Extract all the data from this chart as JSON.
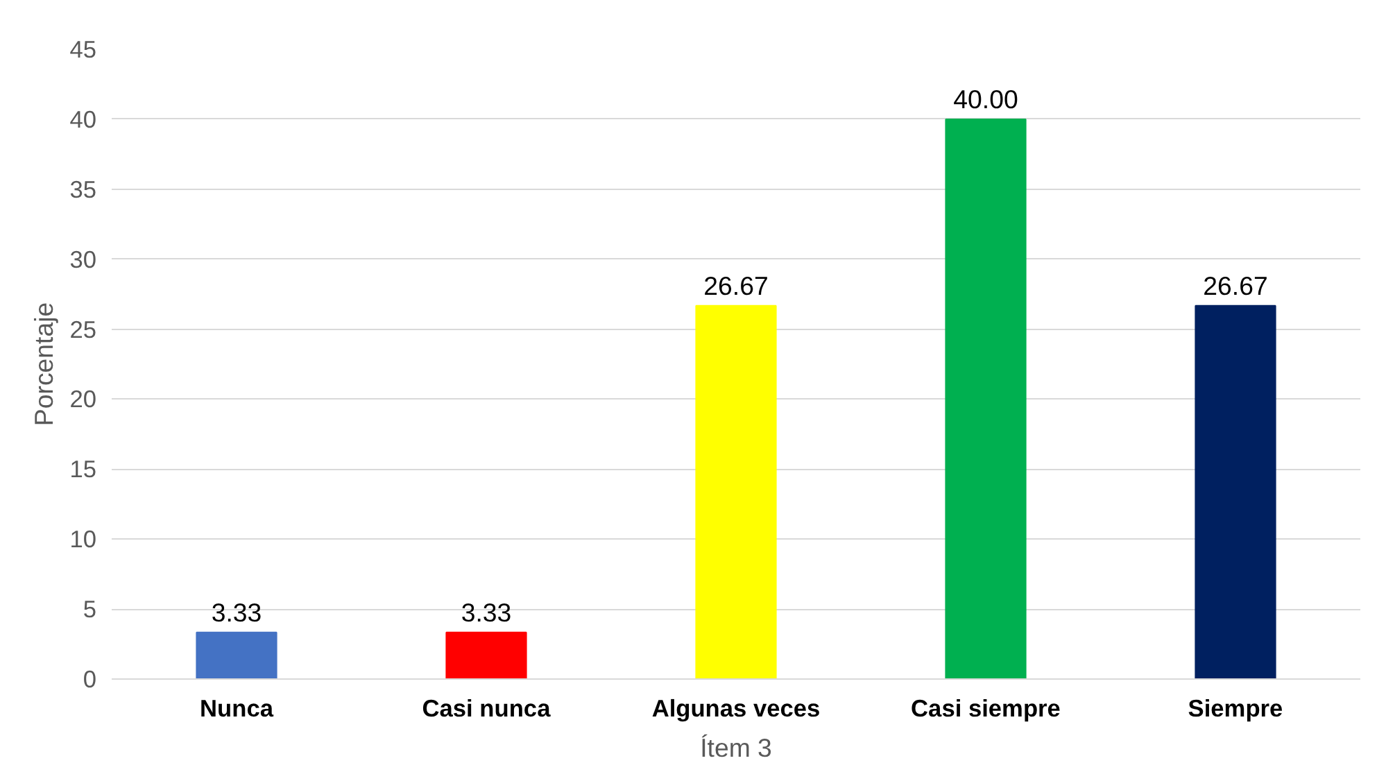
{
  "chart_data": {
    "type": "bar",
    "categories": [
      "Nunca",
      "Casi nunca",
      "Algunas veces",
      "Casi siempre",
      "Siempre"
    ],
    "values": [
      3.33,
      3.33,
      26.67,
      40.0,
      26.67
    ],
    "colors": [
      "#4472c4",
      "#ff0000",
      "#ffff00",
      "#00b050",
      "#002060"
    ],
    "value_labels": [
      "3.33",
      "3.33",
      "26.67",
      "40.00",
      "26.67"
    ],
    "xlabel": "Ítem 3",
    "ylabel": "Porcentaje",
    "ylim": [
      0,
      45
    ],
    "yticks": [
      0,
      5,
      10,
      15,
      20,
      25,
      30,
      35,
      40,
      45
    ],
    "grid": "y"
  }
}
